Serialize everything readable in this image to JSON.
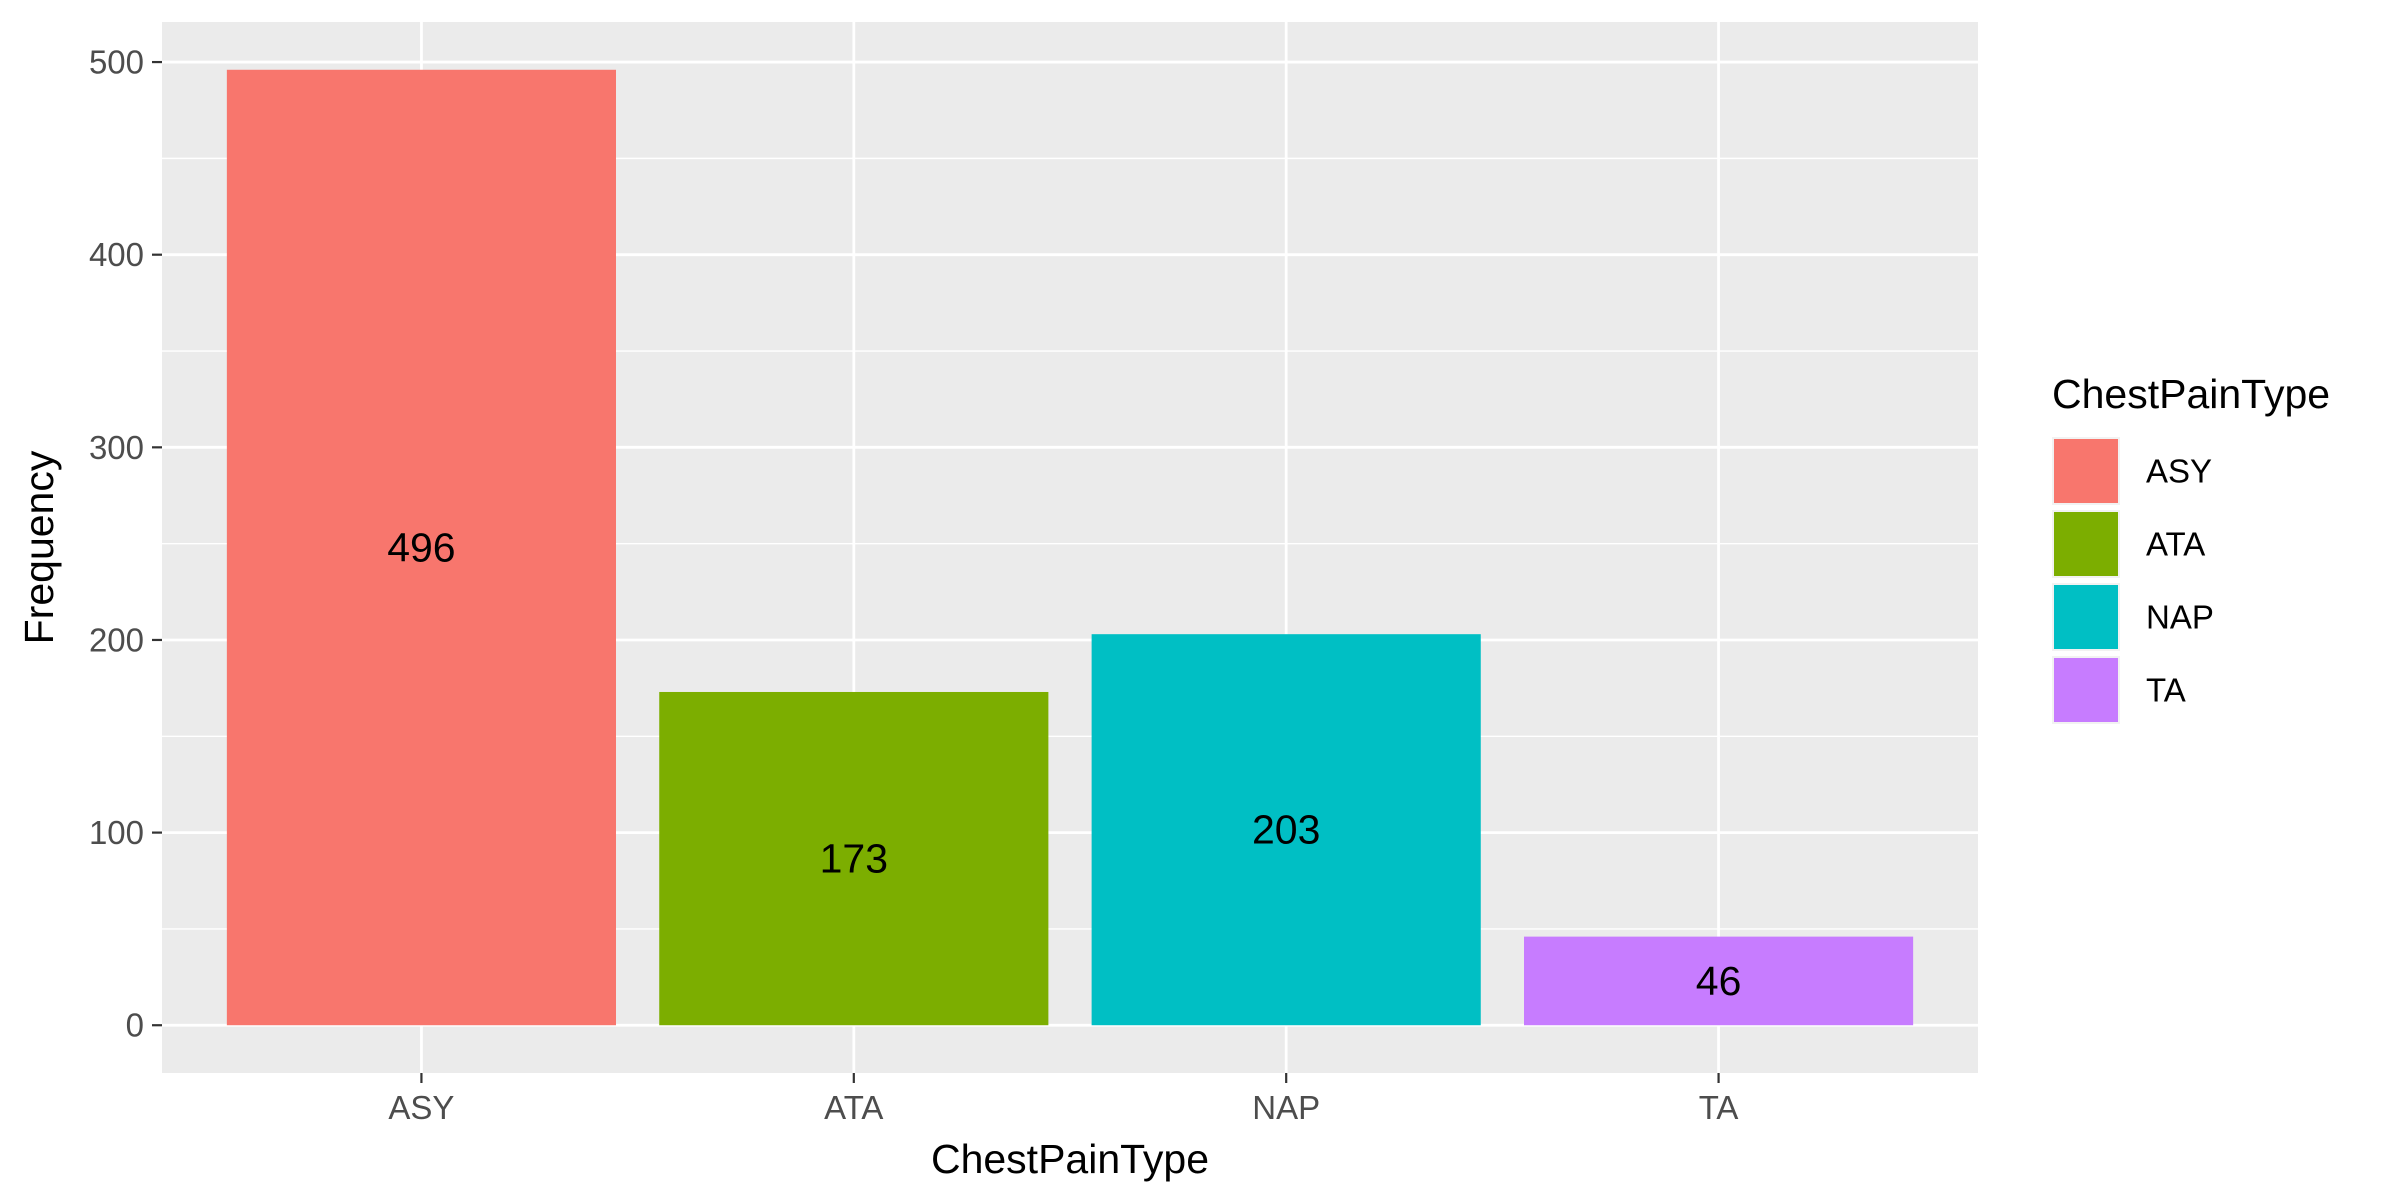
{
  "chart_data": {
    "type": "bar",
    "categories": [
      "ASY",
      "ATA",
      "NAP",
      "TA"
    ],
    "values": [
      496,
      173,
      203,
      46
    ],
    "data_labels": [
      "496",
      "173",
      "203",
      "46"
    ],
    "colors": [
      "#F8766D",
      "#7CAE00",
      "#00BFC4",
      "#C77CFF"
    ],
    "xlabel": "ChestPainType",
    "ylabel": "Frequency",
    "ylim": [
      -24.8,
      520.8
    ],
    "yticks": [
      0,
      100,
      200,
      300,
      400,
      500
    ],
    "ytick_labels": [
      "0",
      "100",
      "200",
      "300",
      "400",
      "500"
    ],
    "grid": true,
    "panel_background": "#EBEBEB",
    "gridline_color": "#FFFFFF",
    "legend": {
      "title": "ChestPainType",
      "position": "right",
      "entries": [
        "ASY",
        "ATA",
        "NAP",
        "TA"
      ]
    }
  }
}
